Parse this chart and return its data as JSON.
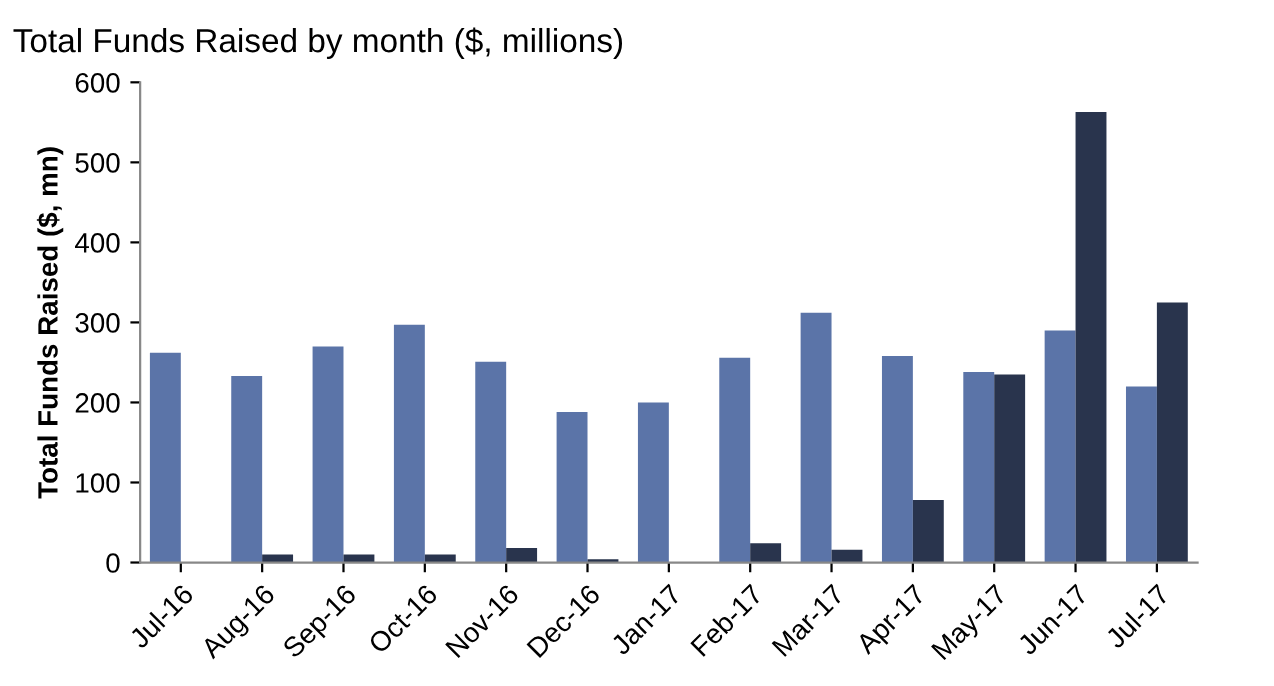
{
  "chart_data": {
    "type": "bar",
    "title": "Total Funds Raised by month ($, millions)",
    "ylabel": "Total Funds Raised ($, mn)",
    "categories": [
      "Jul-16",
      "Aug-16",
      "Sep-16",
      "Oct-16",
      "Nov-16",
      "Dec-16",
      "Jan-17",
      "Feb-17",
      "Mar-17",
      "Apr-17",
      "May-17",
      "Jun-17",
      "Jul-17"
    ],
    "series": [
      {
        "color": "#5b74a8",
        "values": [
          262,
          233,
          270,
          297,
          251,
          188,
          200,
          256,
          312,
          258,
          238,
          290,
          220
        ]
      },
      {
        "color": "#29344d",
        "values": [
          0,
          10,
          10,
          10,
          18,
          4,
          null,
          24,
          16,
          78,
          235,
          563,
          325
        ]
      }
    ],
    "ylim": [
      0,
      600
    ],
    "yticks": [
      0,
      100,
      200,
      300,
      400,
      500,
      600
    ],
    "grid": false
  }
}
